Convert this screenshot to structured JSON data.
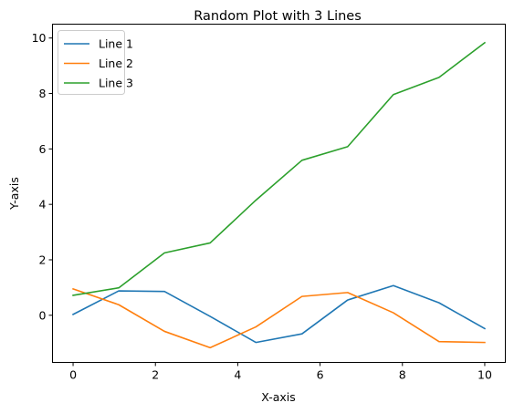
{
  "chart_data": {
    "type": "line",
    "title": "Random Plot with 3 Lines",
    "xlabel": "X-axis",
    "ylabel": "Y-axis",
    "xlim": [
      -0.5,
      10.5
    ],
    "ylim": [
      -1.7,
      10.5
    ],
    "xticks": [
      0,
      2,
      4,
      6,
      8,
      10
    ],
    "yticks": [
      0,
      2,
      4,
      6,
      8,
      10
    ],
    "grid": false,
    "legend_position": "top-left",
    "x": [
      0,
      1.11,
      2.22,
      3.33,
      4.44,
      5.56,
      6.67,
      7.78,
      8.89,
      10
    ],
    "series": [
      {
        "name": "Line 1",
        "color": "#1f77b4",
        "values": [
          0.03,
          0.88,
          0.86,
          -0.04,
          -0.98,
          -0.67,
          0.55,
          1.07,
          0.45,
          -0.48
        ]
      },
      {
        "name": "Line 2",
        "color": "#ff7f0e",
        "values": [
          0.95,
          0.38,
          -0.58,
          -1.17,
          -0.42,
          0.68,
          0.82,
          0.09,
          -0.95,
          -0.98
        ]
      },
      {
        "name": "Line 3",
        "color": "#2ca02c",
        "values": [
          0.72,
          0.99,
          2.25,
          2.61,
          4.15,
          5.59,
          6.08,
          7.96,
          8.58,
          9.83
        ]
      }
    ]
  }
}
